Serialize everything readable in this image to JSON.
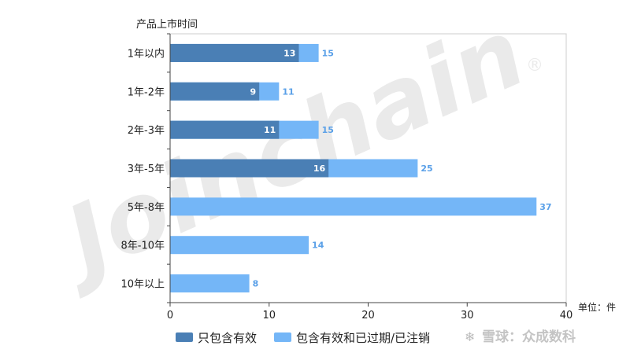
{
  "chart_data": {
    "type": "bar",
    "orientation": "horizontal",
    "ylabel": "产品上市时间",
    "unit": "单位：件",
    "categories": [
      "1年以内",
      "1年-2年",
      "2年-3年",
      "3年-5年",
      "5年-8年",
      "8年-10年",
      "10年以上"
    ],
    "series": [
      {
        "name": "只包含有效",
        "values": [
          13,
          9,
          11,
          16,
          0,
          0,
          0
        ],
        "color": "#4a7fb5"
      },
      {
        "name": "包含有效和已过期/已注销",
        "values": [
          15,
          11,
          15,
          25,
          37,
          14,
          8
        ],
        "color": "#74b6f7"
      }
    ],
    "xlim": [
      0,
      40
    ],
    "xticks": [
      0,
      10,
      20,
      30,
      40
    ],
    "grid": false,
    "legend_position": "bottom"
  },
  "watermark": {
    "brand": "Joinchain",
    "registered": "®",
    "source": "雪球：众成数科"
  }
}
